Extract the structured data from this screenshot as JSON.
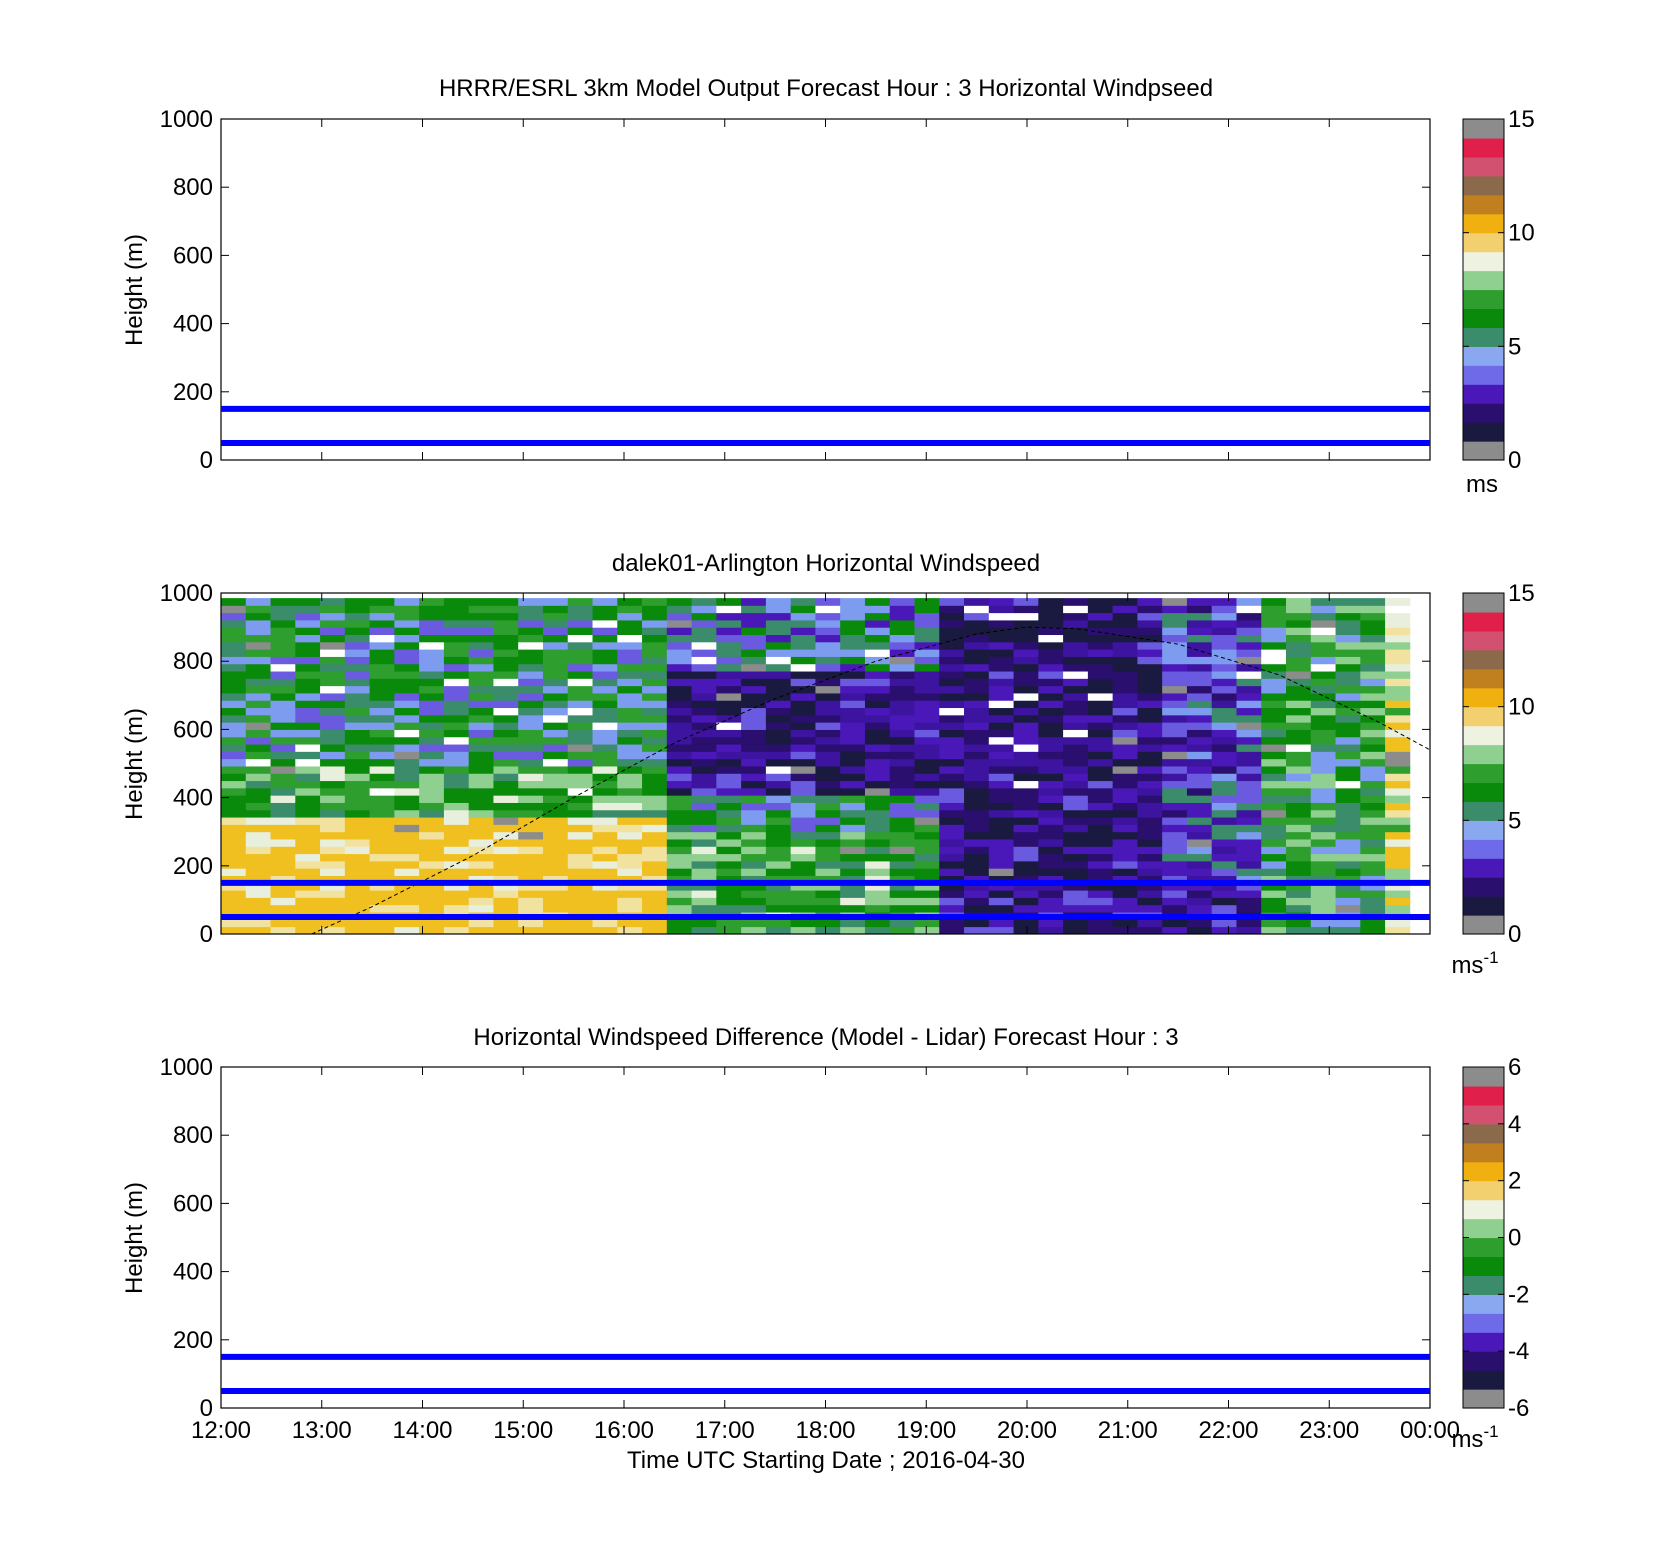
{
  "page": {
    "xlabel": "Time UTC  Starting Date ; 2016-04-30",
    "x_ticks": [
      "12:00",
      "13:00",
      "14:00",
      "15:00",
      "16:00",
      "17:00",
      "18:00",
      "19:00",
      "20:00",
      "21:00",
      "22:00",
      "23:00",
      "00:00"
    ]
  },
  "colors": {
    "ref_lines": "#0000ff",
    "colormap": [
      "#8c8c8c",
      "#1a1a40",
      "#2a0f6e",
      "#4a18b8",
      "#6f6ae8",
      "#8aa8f0",
      "#3a8c6a",
      "#0a8a0a",
      "#2e9e2e",
      "#8fcf8f",
      "#eef2e0",
      "#f2d070",
      "#f0b010",
      "#c08020",
      "#8a6a4a",
      "#d25070",
      "#e0204a",
      "#8c8c8c"
    ]
  },
  "chart_data": [
    {
      "type": "empty",
      "title": "HRRR/ESRL 3km Model Output   Forecast Hour : 3 Horizontal Windpseed",
      "ylabel": "Height (m)",
      "ylim": [
        0,
        1000
      ],
      "y_ticks": [
        "0",
        "200",
        "400",
        "600",
        "800",
        "1000"
      ],
      "x_ticks_visible": false,
      "reference_lines_m": [
        50,
        150
      ],
      "colorbar": {
        "ticks": [
          "0",
          "5",
          "10",
          "15"
        ],
        "range": [
          0,
          15
        ],
        "unit": "ms"
      }
    },
    {
      "type": "heatmap",
      "title": "dalek01-Arlington  Horizontal Windspeed",
      "ylabel": "Height (m)",
      "ylim": [
        0,
        1000
      ],
      "y_ticks": [
        "0",
        "200",
        "400",
        "600",
        "800",
        "1000"
      ],
      "x_ticks_visible": false,
      "xlim_hours": [
        12,
        24
      ],
      "reference_lines_m": [
        50,
        150
      ],
      "dashed_curve": [
        [
          12.9,
          0
        ],
        [
          13.5,
          80
        ],
        [
          14.5,
          230
        ],
        [
          15.5,
          400
        ],
        [
          16.5,
          560
        ],
        [
          17.5,
          690
        ],
        [
          18.5,
          800
        ],
        [
          19.5,
          880
        ],
        [
          20.0,
          900
        ],
        [
          20.5,
          895
        ],
        [
          21.5,
          850
        ],
        [
          22.5,
          760
        ],
        [
          23.5,
          620
        ],
        [
          24.0,
          540
        ]
      ],
      "colorbar": {
        "ticks": [
          "0",
          "5",
          "10",
          "15"
        ],
        "range": [
          0,
          15
        ],
        "unit": "ms",
        "unit_sup": "-1"
      }
    },
    {
      "type": "empty",
      "title": "Horizontal Windspeed Difference (Model - Lidar) Forecast Hour : 3",
      "ylabel": "Height (m)",
      "ylim": [
        0,
        1000
      ],
      "y_ticks": [
        "0",
        "200",
        "400",
        "600",
        "800",
        "1000"
      ],
      "x_ticks_visible": true,
      "reference_lines_m": [
        50,
        150
      ],
      "colorbar": {
        "ticks": [
          "-6",
          "-4",
          "-2",
          "0",
          "2",
          "4",
          "6"
        ],
        "range": [
          -6,
          6
        ],
        "unit": "ms",
        "unit_sup": "-1"
      }
    }
  ]
}
